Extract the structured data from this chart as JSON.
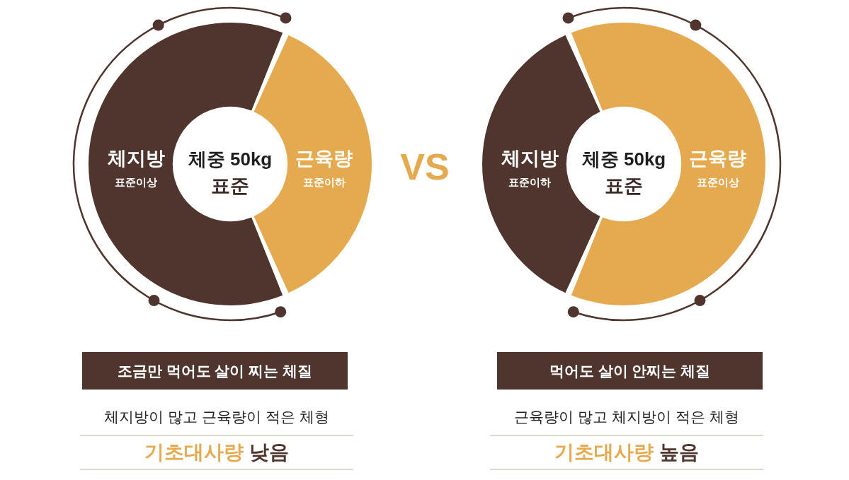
{
  "chart_data": [
    {
      "type": "donut",
      "title": "체중 50kg",
      "subtitle": "표준",
      "categories": [
        "체지방",
        "근육량"
      ],
      "values": [
        63,
        37
      ],
      "colors": [
        "#4f352d",
        "#e5aa50"
      ],
      "value_labels": [
        "표준이상",
        "표준이하"
      ],
      "annotations": [
        "조금만 먹어도 살이 찌는 체질",
        "체지방이 많고 근육량이 적은 체형",
        "기초대사량 낮음"
      ]
    },
    {
      "type": "other",
      "title": "VS"
    },
    {
      "type": "donut",
      "title": "체중 50kg",
      "subtitle": "표준",
      "categories": [
        "체지방",
        "근육량"
      ],
      "values": [
        37,
        63
      ],
      "colors": [
        "#4f352d",
        "#e5aa50"
      ],
      "value_labels": [
        "표준이하",
        "표준이상"
      ],
      "annotations": [
        "먹어도 살이 안찌는 체질",
        "근육량이 많고 체지방이 적은 체형",
        "기초대사량 높음"
      ]
    }
  ]
}
